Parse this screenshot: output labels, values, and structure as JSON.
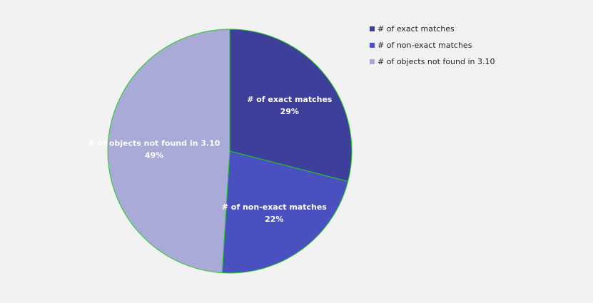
{
  "chart_data": {
    "type": "pie",
    "title": "",
    "categories": [
      "# of exact matches",
      "# of non-exact matches",
      "# of objects not found in 3.10"
    ],
    "values": [
      29,
      22,
      49
    ],
    "value_labels": [
      "29%",
      "22%",
      "49%"
    ],
    "colors": [
      "#3d3f9b",
      "#4b50c0",
      "#a9aad8"
    ],
    "slice_border_color": "#22cc22",
    "legend_position": "top-right"
  }
}
